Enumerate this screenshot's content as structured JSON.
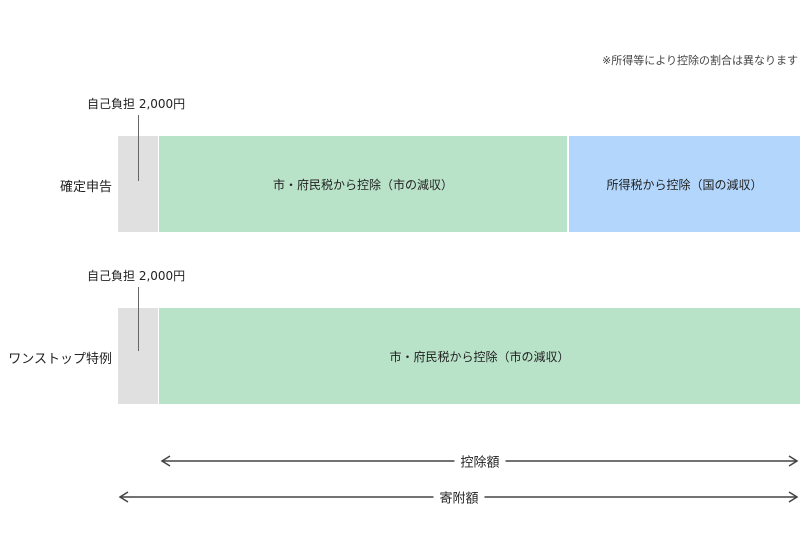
{
  "note": "※所得等により控除の割合は異なります",
  "rows": [
    {
      "label": "確定申告",
      "self_pay": "自己負担 2,000円",
      "segments": [
        "市・府民税から控除（市の減収）",
        "所得税から控除（国の減収）"
      ]
    },
    {
      "label": "ワンストップ特例",
      "self_pay": "自己負担 2,000円",
      "segments": [
        "市・府民税から控除（市の減収）"
      ]
    }
  ],
  "arrows": [
    "控除額",
    "寄附額"
  ]
}
